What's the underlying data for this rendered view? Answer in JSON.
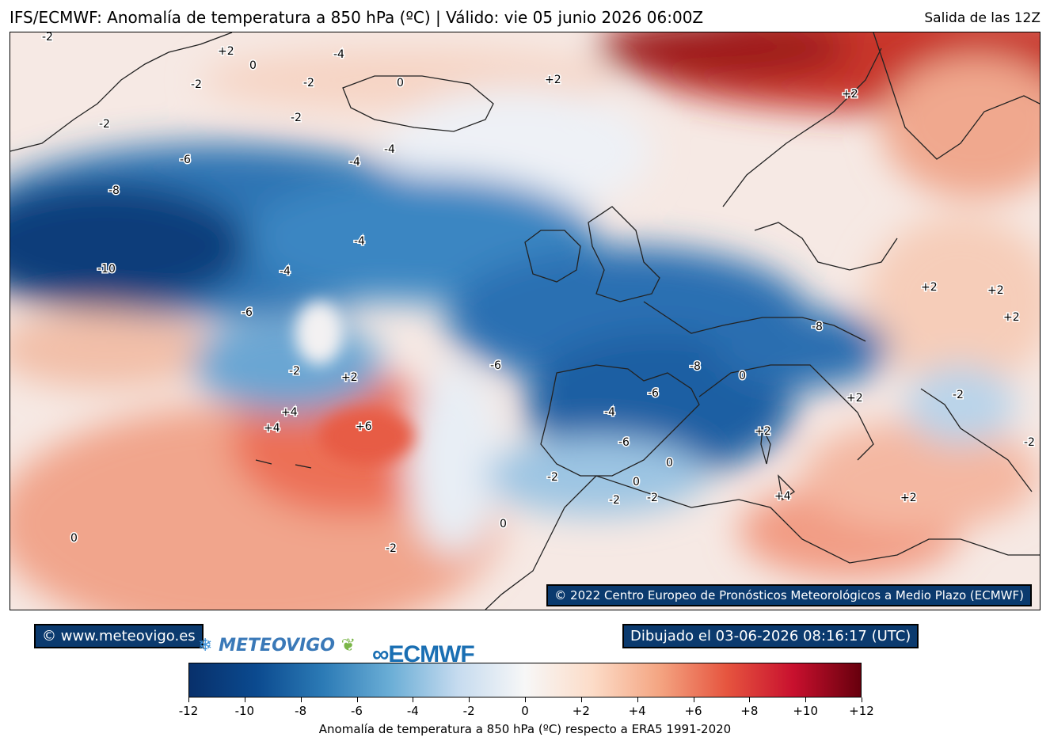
{
  "header": {
    "title": "IFS/ECMWF: Anomalía de temperatura a 850 hPa (ºC) | Válido: vie 05 junio 2026 06:00Z",
    "run": "Salida de las 12Z"
  },
  "map": {
    "copyright": "© 2022 Centro Europeo de Pronósticos Meteorológicos a Medio Plazo (ECMWF)",
    "contour_labels": [
      "-2",
      "+2",
      "0",
      "-4",
      "-2",
      "0",
      "+2",
      "-2",
      "+2",
      "-2",
      "-2",
      "-6",
      "-4",
      "-4",
      "-8",
      "-4",
      "-10",
      "-4",
      "-6",
      "-2",
      "+2",
      "-6",
      "-8",
      "0",
      "-8",
      "-6",
      "-4",
      "-6",
      "+4",
      "+4",
      "+6",
      "+2",
      "+2",
      "+2",
      "+4",
      "-2",
      "-2",
      "-2",
      "-2",
      "0",
      "0",
      "0",
      "-2",
      "0",
      "+2",
      "-2",
      "+2",
      "+2"
    ]
  },
  "footer": {
    "site": "© www.meteovigo.es",
    "drawn": "Dibujado el 03-06-2026 08:16:17 (UTC)",
    "logo_meteovigo": "METEOVIGO",
    "logo_ecmwf": "ECMWF"
  },
  "colorbar": {
    "ticks": [
      "-12",
      "-10",
      "-8",
      "-6",
      "-4",
      "-2",
      "0",
      "+2",
      "+4",
      "+6",
      "+8",
      "+10",
      "+12"
    ],
    "label": "Anomalía de temperatura a 850 hPa (ºC) respecto a ERA5 1991-2020",
    "colors": [
      "#08306b",
      "#0b4a8f",
      "#2c7bb6",
      "#6baed6",
      "#c6dbef",
      "#f7f7f7",
      "#fcdcc8",
      "#f4a582",
      "#e6553f",
      "#c8102e",
      "#67000d"
    ]
  }
}
